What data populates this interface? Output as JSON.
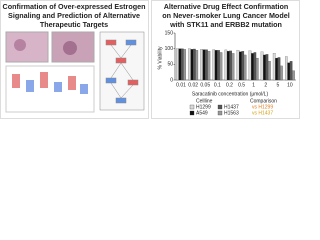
{
  "left_panel": {
    "title_lines": [
      "Confirmation of Over-expressed Estrogen",
      "Signaling and Prediction of Alternative",
      "Therapeutic Targets"
    ]
  },
  "chart_data": {
    "type": "bar",
    "title_lines": [
      "Alternative Drug Effect Confirmation",
      "on Never-smoker Lung Cancer Model",
      "with STK11 and ERBB2 mutation"
    ],
    "y_label": "% Viability",
    "x_label": "Saracatinib concentration (μmol/L)",
    "categories": [
      "0.01",
      "0.02",
      "0.05",
      "0.1",
      "0.2",
      "0.5",
      "1",
      "2",
      "5",
      "10"
    ],
    "ylim": [
      0,
      150
    ],
    "yticks": [
      0,
      50,
      100,
      150
    ],
    "legend_title": "Cellline",
    "series": [
      {
        "name": "H1299",
        "color": "#d9d9d9",
        "values": [
          100,
          100,
          98,
          97,
          96,
          95,
          93,
          90,
          85,
          75
        ]
      },
      {
        "name": "A549",
        "color": "#111111",
        "values": [
          100,
          98,
          97,
          95,
          92,
          90,
          85,
          80,
          70,
          55
        ]
      },
      {
        "name": "H1437",
        "color": "#555555",
        "values": [
          100,
          99,
          97,
          95,
          93,
          92,
          88,
          82,
          72,
          60
        ]
      },
      {
        "name": "H1563",
        "color": "#999999",
        "values": [
          98,
          95,
          92,
          88,
          85,
          80,
          70,
          60,
          45,
          30
        ]
      }
    ],
    "comparison_title": "Comparison",
    "comparison": [
      {
        "name": "vs H1299",
        "color": "#e07b20"
      },
      {
        "name": "vs H1437",
        "color": "#d4a017"
      }
    ]
  }
}
